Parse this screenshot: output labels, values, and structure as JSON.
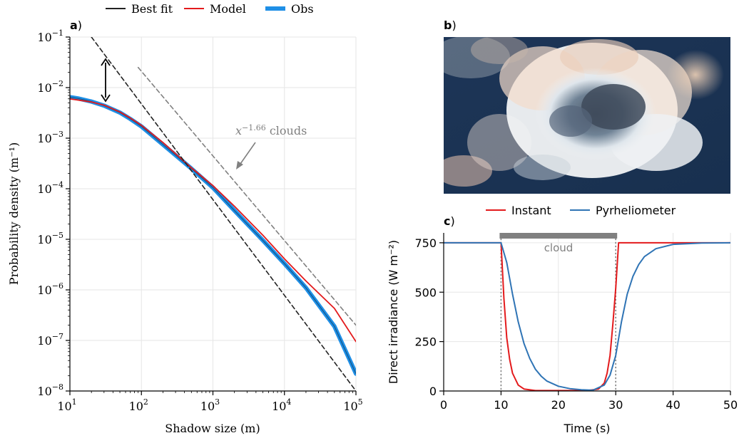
{
  "legend_a": [
    {
      "label": "Best fit",
      "color": "#222222"
    },
    {
      "label": "Model",
      "color": "#e31a1c"
    },
    {
      "label": "Obs",
      "color": "#1f8fe6"
    }
  ],
  "legend_c": [
    {
      "label": "Instant",
      "color": "#e31a1c"
    },
    {
      "label": "Pyrheliometer",
      "color": "#2f74b5"
    }
  ],
  "panel_labels": {
    "a": "a",
    "b": "b",
    "c": "c"
  },
  "photo": {
    "description_icon": "cloud-photo"
  },
  "chart_data": [
    {
      "panel": "a",
      "type": "line",
      "xscale": "log",
      "yscale": "log",
      "xlabel": "Shadow size (m)",
      "ylabel": "Probability density (m⁻¹)",
      "xlim": [
        10,
        100000
      ],
      "ylim": [
        1e-08,
        0.1
      ],
      "xticks": [
        {
          "base": "10",
          "exp": "1"
        },
        {
          "base": "10",
          "exp": "2"
        },
        {
          "base": "10",
          "exp": "3"
        },
        {
          "base": "10",
          "exp": "4"
        },
        {
          "base": "10",
          "exp": "5"
        }
      ],
      "yticks": [
        {
          "base": "10",
          "exp": "−8"
        },
        {
          "base": "10",
          "exp": "−7"
        },
        {
          "base": "10",
          "exp": "−6"
        },
        {
          "base": "10",
          "exp": "−5"
        },
        {
          "base": "10",
          "exp": "−4"
        },
        {
          "base": "10",
          "exp": "−3"
        },
        {
          "base": "10",
          "exp": "−2"
        },
        {
          "base": "10",
          "exp": "−1"
        }
      ],
      "grid": true,
      "annotation": {
        "base": "x",
        "exp": "−1.66",
        "suffix": " clouds",
        "color": "#808080"
      },
      "series": [
        {
          "name": "Obs",
          "color": "#1f8fe6",
          "x": [
            10,
            13,
            20,
            30,
            50,
            70,
            100,
            200,
            500,
            1000,
            2000,
            5000,
            10000,
            20000,
            50000,
            100000
          ],
          "y": [
            0.0065,
            0.0061,
            0.0053,
            0.0044,
            0.0032,
            0.0024,
            0.0017,
            0.00075,
            0.00025,
            0.000105,
            3.7e-05,
            9.5e-06,
            3.3e-06,
            1.1e-06,
            1.9e-07,
            2.2e-08
          ]
        },
        {
          "name": "Model",
          "color": "#e31a1c",
          "x": [
            10,
            20,
            30,
            50,
            70,
            100,
            200,
            500,
            1000,
            2000,
            5000,
            10000,
            20000,
            50000,
            100000
          ],
          "y": [
            0.006,
            0.0052,
            0.0045,
            0.0033,
            0.0025,
            0.0018,
            0.00082,
            0.00026,
            0.000115,
            4.5e-05,
            1.2e-05,
            4.1e-06,
            1.5e-06,
            4.3e-07,
            9.5e-08
          ]
        },
        {
          "name": "Best fit",
          "color": "#222222",
          "dashed": true,
          "x": [
            20,
            100000
          ],
          "y": [
            0.1,
            1e-08
          ]
        },
        {
          "name": "x^-1.66 clouds",
          "color": "#808080",
          "dashed": true,
          "x": [
            90,
            100000
          ],
          "y": [
            0.025,
            2e-07
          ]
        }
      ]
    },
    {
      "panel": "c",
      "type": "line",
      "xlabel": "Time (s)",
      "ylabel": "Direct irradiance (W m⁻²)",
      "xlim": [
        0,
        50
      ],
      "ylim": [
        0,
        800
      ],
      "xticks": [
        0,
        10,
        20,
        30,
        40,
        50
      ],
      "yticks": [
        0,
        250,
        500,
        750
      ],
      "grid": true,
      "annotation": {
        "text": "cloud",
        "x_start": 10,
        "x_end": 30,
        "color": "#808080"
      },
      "series": [
        {
          "name": "Instant",
          "color": "#e31a1c",
          "x": [
            0,
            10,
            10.5,
            11,
            11.5,
            12,
            13,
            14,
            16,
            25,
            27,
            28,
            28.5,
            29,
            29.5,
            30,
            30.5,
            35,
            50
          ],
          "y": [
            750,
            750,
            470,
            270,
            160,
            90,
            30,
            10,
            2,
            2,
            10,
            40,
            90,
            180,
            340,
            520,
            750,
            750,
            750
          ]
        },
        {
          "name": "Pyrheliometer",
          "color": "#2f74b5",
          "x": [
            0,
            10,
            11,
            12,
            13,
            14,
            15,
            16,
            17,
            18,
            20,
            22,
            24,
            26,
            28,
            29,
            30,
            31,
            32,
            33,
            34,
            35,
            37,
            40,
            45,
            50
          ],
          "y": [
            750,
            750,
            650,
            490,
            350,
            240,
            165,
            110,
            75,
            50,
            24,
            12,
            6,
            4,
            30,
            80,
            180,
            350,
            490,
            580,
            640,
            680,
            720,
            742,
            749,
            750
          ]
        }
      ]
    }
  ]
}
